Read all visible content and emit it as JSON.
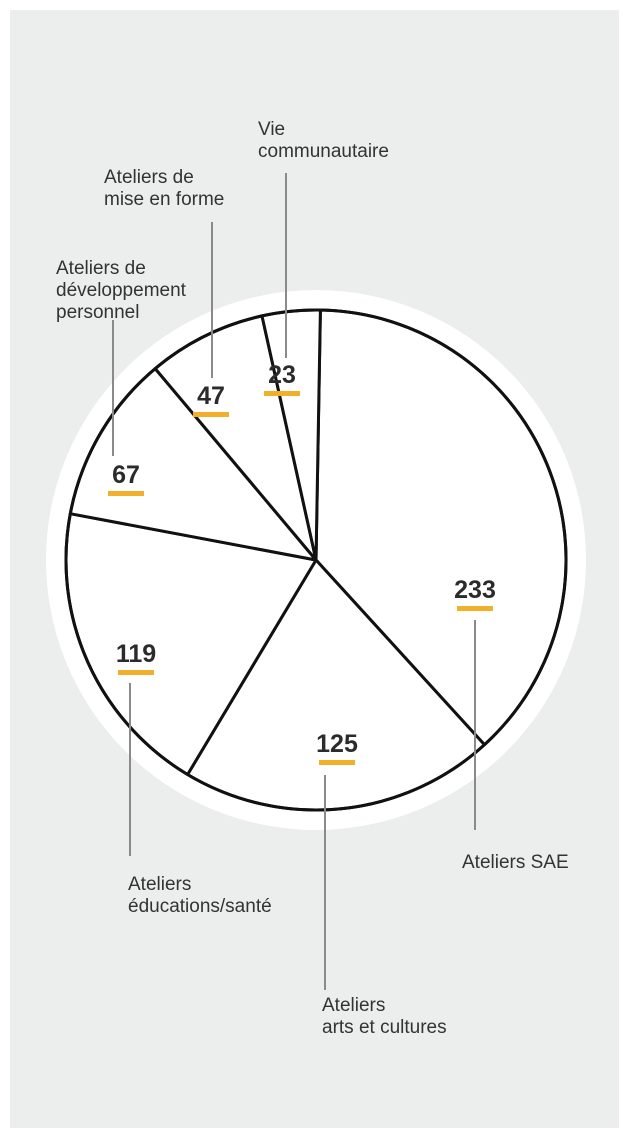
{
  "chart_data": {
    "type": "pie",
    "slices": [
      {
        "label": [
          "Ateliers SAE"
        ],
        "value": 233
      },
      {
        "label": [
          "Ateliers",
          "arts et cultures"
        ],
        "value": 125
      },
      {
        "label": [
          "Ateliers",
          "éducations/santé"
        ],
        "value": 119
      },
      {
        "label": [
          "Ateliers de",
          "développement",
          "personnel"
        ],
        "value": 67
      },
      {
        "label": [
          "Ateliers de",
          "mise en forme"
        ],
        "value": 47
      },
      {
        "label": [
          "Vie",
          "communautaire"
        ],
        "value": 23
      }
    ],
    "colors": {
      "background": "#eceded",
      "halo": "#ffffff",
      "slice_fill": "#ffffff",
      "outline": "#111111",
      "underline": "#f2b02a",
      "leader": "#8a8a8a",
      "text": "#333333"
    }
  }
}
